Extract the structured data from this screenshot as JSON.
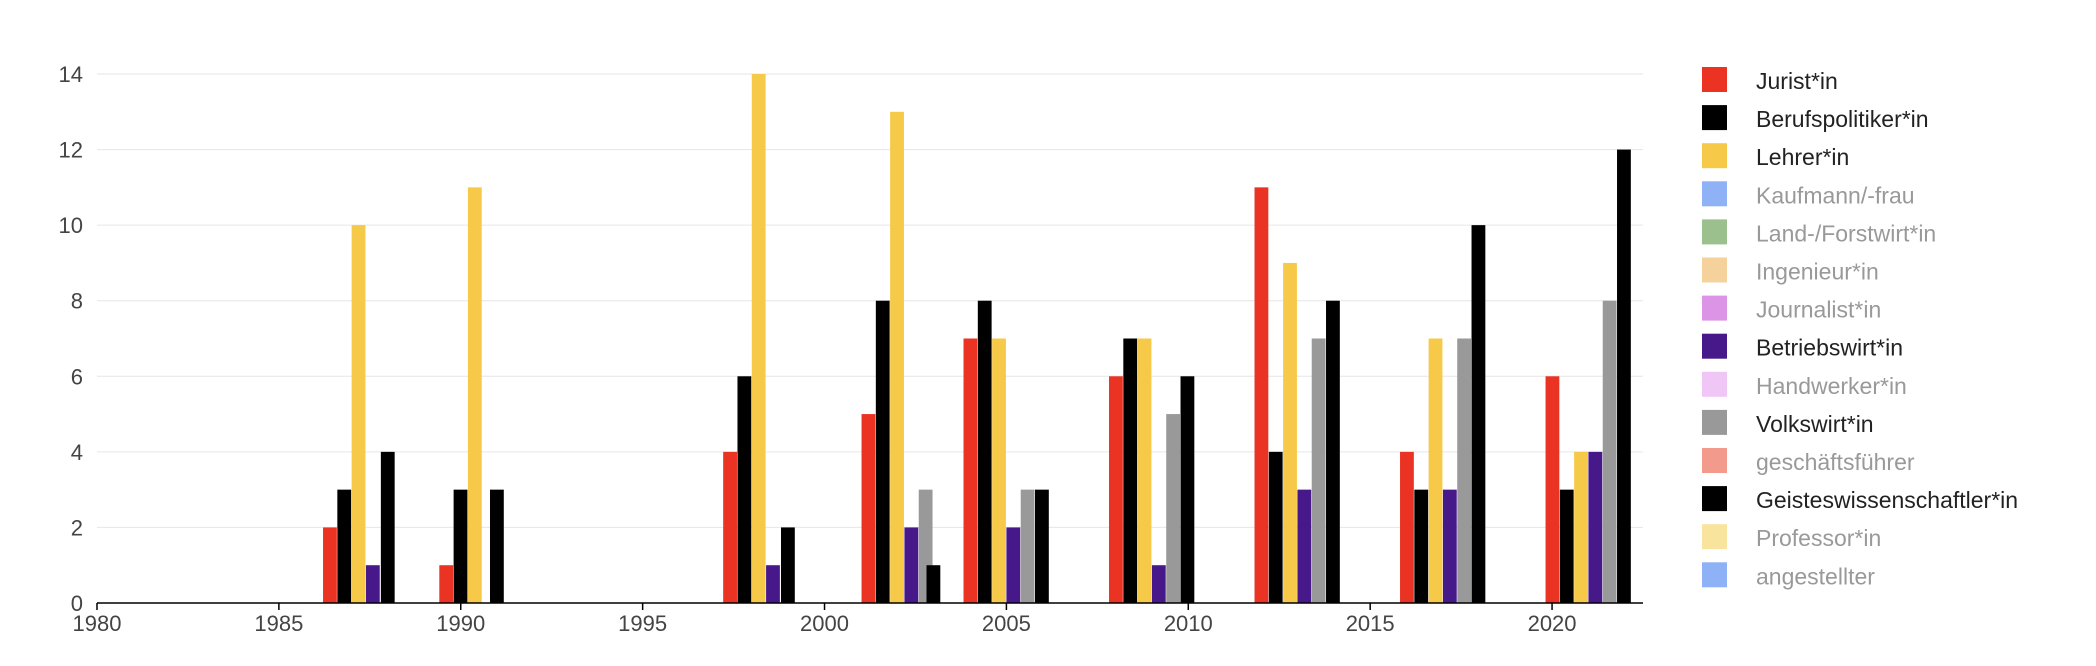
{
  "chart_data": {
    "type": "bar",
    "title": "",
    "xlabel": "",
    "ylabel": "",
    "xlim": [
      1980,
      2022.5
    ],
    "ylim": [
      0,
      14
    ],
    "x_ticks": [
      1980,
      1985,
      1990,
      1995,
      2000,
      2005,
      2010,
      2015,
      2020
    ],
    "y_ticks": [
      0,
      2,
      4,
      6,
      8,
      10,
      12,
      14
    ],
    "grid": true,
    "legend_position": "right",
    "groups": [
      {
        "center": 1987,
        "series": [
          "Jurist*in",
          "Berufspolitiker*in",
          "Lehrer*in",
          "Betriebswirt*in"
        ],
        "values": [
          2,
          3,
          10,
          1
        ]
      },
      {
        "center": 1988,
        "series": [
          "Geisteswissenschaftler*in"
        ],
        "values": [
          4
        ]
      },
      {
        "center": 1990,
        "series": [
          "Jurist*in",
          "Berufspolitiker*in",
          "Lehrer*in"
        ],
        "values": [
          1,
          3,
          11
        ]
      },
      {
        "center": 1991,
        "series": [
          "Geisteswissenschaftler*in"
        ],
        "values": [
          3
        ]
      },
      {
        "center": 1998,
        "series": [
          "Jurist*in",
          "Berufspolitiker*in",
          "Lehrer*in",
          "Betriebswirt*in"
        ],
        "values": [
          4,
          6,
          14,
          1
        ]
      },
      {
        "center": 1999,
        "series": [
          "Geisteswissenschaftler*in"
        ],
        "values": [
          2
        ]
      },
      {
        "center": 2002,
        "series": [
          "Jurist*in",
          "Berufspolitiker*in",
          "Lehrer*in",
          "Betriebswirt*in",
          "Volkswirt*in"
        ],
        "values": [
          5,
          8,
          13,
          2,
          3
        ]
      },
      {
        "center": 2003,
        "series": [
          "Geisteswissenschaftler*in"
        ],
        "values": [
          1
        ]
      },
      {
        "center": 2005,
        "series": [
          "Jurist*in",
          "Berufspolitiker*in",
          "Lehrer*in",
          "Betriebswirt*in",
          "Volkswirt*in",
          "Geisteswissenschaftler*in"
        ],
        "values": [
          7,
          8,
          7,
          2,
          3,
          3
        ]
      },
      {
        "center": 2009,
        "series": [
          "Jurist*in",
          "Berufspolitiker*in",
          "Lehrer*in",
          "Betriebswirt*in",
          "Volkswirt*in",
          "Geisteswissenschaftler*in"
        ],
        "values": [
          6,
          7,
          7,
          1,
          5,
          6
        ]
      },
      {
        "center": 2013,
        "series": [
          "Jurist*in",
          "Berufspolitiker*in",
          "Lehrer*in",
          "Betriebswirt*in",
          "Volkswirt*in",
          "Geisteswissenschaftler*in"
        ],
        "values": [
          11,
          4,
          9,
          3,
          7,
          8
        ]
      },
      {
        "center": 2017,
        "series": [
          "Jurist*in",
          "Berufspolitiker*in",
          "Lehrer*in",
          "Betriebswirt*in",
          "Volkswirt*in",
          "Geisteswissenschaftler*in"
        ],
        "values": [
          4,
          3,
          7,
          3,
          7,
          10
        ]
      },
      {
        "center": 2021,
        "series": [
          "Jurist*in",
          "Berufspolitiker*in",
          "Lehrer*in",
          "Betriebswirt*in",
          "Volkswirt*in",
          "Geisteswissenschaftler*in"
        ],
        "values": [
          6,
          3,
          4,
          4,
          8,
          12
        ]
      }
    ],
    "legend": [
      {
        "name": "Jurist*in",
        "color": "#ea3323",
        "active": true
      },
      {
        "name": "Berufspolitiker*in",
        "color": "#000000",
        "active": true
      },
      {
        "name": "Lehrer*in",
        "color": "#f7c948",
        "active": true
      },
      {
        "name": "Kaufmann/-frau",
        "color": "#8fb2f6",
        "active": false
      },
      {
        "name": "Land-/Forstwirt*in",
        "color": "#9bbf8d",
        "active": false
      },
      {
        "name": "Ingenieur*in",
        "color": "#f5d29c",
        "active": false
      },
      {
        "name": "Journalist*in",
        "color": "#db94e6",
        "active": false
      },
      {
        "name": "Betriebswirt*in",
        "color": "#46188a",
        "active": true
      },
      {
        "name": "Handwerker*in",
        "color": "#f0c6f6",
        "active": false
      },
      {
        "name": "Volkswirt*in",
        "color": "#999999",
        "active": true
      },
      {
        "name": "geschäftsführer",
        "color": "#f29b8c",
        "active": false
      },
      {
        "name": "Geisteswissenschaftler*in",
        "color": "#000000",
        "active": true
      },
      {
        "name": "Professor*in",
        "color": "#f9e49e",
        "active": false
      },
      {
        "name": "angestellter",
        "color": "#8fb2f6",
        "active": false
      }
    ],
    "colors": {
      "active_text": "#222222",
      "inactive_text": "#999999",
      "grid": "#e6e6e6",
      "axis": "#000000"
    }
  }
}
